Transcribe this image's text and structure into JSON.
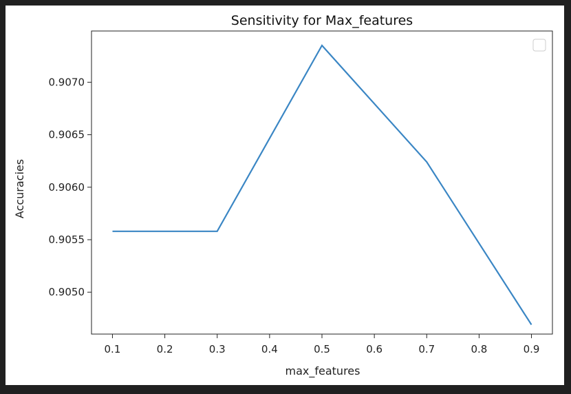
{
  "colors": {
    "line": "#3a86c4",
    "axes": "#222222",
    "legend_border": "#cccccc"
  },
  "legend": {
    "position": "upper right",
    "entries": []
  },
  "chart_data": {
    "type": "line",
    "title": "Sensitivity for Max_features",
    "xlabel": "max_features",
    "ylabel": "Accuracies",
    "x": [
      0.1,
      0.3,
      0.5,
      0.7,
      0.9
    ],
    "series": [
      {
        "values": [
          0.90558,
          0.90558,
          0.90735,
          0.90624,
          0.90469
        ]
      }
    ],
    "xticks": [
      0.1,
      0.2,
      0.3,
      0.4,
      0.5,
      0.6,
      0.7,
      0.8,
      0.9
    ],
    "xtick_labels": [
      "0.1",
      "0.2",
      "0.3",
      "0.4",
      "0.5",
      "0.6",
      "0.7",
      "0.8",
      "0.9"
    ],
    "yticks": [
      0.905,
      0.9055,
      0.906,
      0.9065,
      0.907
    ],
    "ytick_labels": [
      "0.9050",
      "0.9055",
      "0.9060",
      "0.9065",
      "0.9070"
    ],
    "xlim": [
      0.06,
      0.94
    ],
    "ylim": [
      0.904601,
      0.907488
    ],
    "grid": false
  }
}
